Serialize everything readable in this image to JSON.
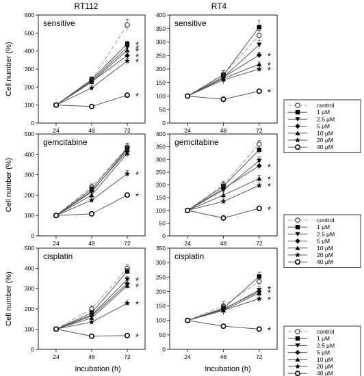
{
  "figure": {
    "column_titles": [
      "RT112",
      "RT4"
    ],
    "ylabel": "Cell number (%)",
    "xlabel": "Incubation (h)"
  },
  "legend_entries": [
    "control",
    "1 µM",
    "2.5 µM",
    "5 µM",
    "10 µM",
    "20 µM",
    "40 µM"
  ],
  "colors": {
    "control": "#9a9a9a",
    "series": "#555555",
    "marker": "#000000"
  },
  "chart_data": [
    {
      "id": "rt112-sensitive",
      "type": "line",
      "title": "sensitive",
      "x": [
        24,
        48,
        72
      ],
      "xticks": [
        24,
        48,
        72
      ],
      "ylim": [
        0,
        600
      ],
      "yticks": [
        0,
        100,
        200,
        300,
        400,
        500,
        600
      ],
      "series": [
        {
          "name": "control",
          "values": [
            100,
            240,
            545
          ],
          "errors": [
            0,
            15,
            30
          ]
        },
        {
          "name": "1 µM",
          "values": [
            100,
            242,
            440
          ],
          "errors": [
            0,
            15,
            15
          ]
        },
        {
          "name": "2.5 µM",
          "values": [
            100,
            235,
            420
          ],
          "errors": [
            0,
            15,
            15
          ]
        },
        {
          "name": "5 µM",
          "values": [
            100,
            230,
            375
          ],
          "errors": [
            0,
            15,
            15
          ]
        },
        {
          "name": "10 µM",
          "values": [
            100,
            228,
            405
          ],
          "errors": [
            0,
            15,
            15
          ]
        },
        {
          "name": "20 µM",
          "values": [
            100,
            195,
            345
          ],
          "errors": [
            0,
            15,
            15
          ]
        },
        {
          "name": "40 µM",
          "values": [
            100,
            92,
            155
          ],
          "errors": [
            0,
            10,
            10
          ]
        }
      ],
      "star_values": [
        155,
        345,
        375,
        405,
        420,
        440
      ]
    },
    {
      "id": "rt4-sensitive",
      "type": "line",
      "title": "sensitive",
      "x": [
        24,
        48,
        72
      ],
      "xticks": [
        24,
        48,
        72
      ],
      "ylim": [
        0,
        400
      ],
      "yticks": [
        0,
        50,
        100,
        150,
        200,
        250,
        300,
        350,
        400
      ],
      "series": [
        {
          "name": "control",
          "values": [
            100,
            180,
            325
          ],
          "errors": [
            0,
            15,
            18
          ]
        },
        {
          "name": "1 µM",
          "values": [
            100,
            178,
            355
          ],
          "errors": [
            0,
            15,
            25
          ]
        },
        {
          "name": "2.5 µM",
          "values": [
            100,
            170,
            290
          ],
          "errors": [
            0,
            15,
            15
          ]
        },
        {
          "name": "5 µM",
          "values": [
            100,
            170,
            252
          ],
          "errors": [
            0,
            15,
            10
          ]
        },
        {
          "name": "10 µM",
          "values": [
            100,
            165,
            218
          ],
          "errors": [
            0,
            15,
            10
          ]
        },
        {
          "name": "20 µM",
          "values": [
            100,
            160,
            200
          ],
          "errors": [
            0,
            15,
            10
          ]
        },
        {
          "name": "40 µM",
          "values": [
            100,
            88,
            118
          ],
          "errors": [
            0,
            8,
            8
          ]
        }
      ],
      "star_values": [
        118,
        200,
        218,
        252
      ]
    },
    {
      "id": "rt112-gemcitabine",
      "type": "line",
      "title": "gemcitabine",
      "x": [
        24,
        48,
        72
      ],
      "xticks": [
        24,
        48,
        72
      ],
      "ylim": [
        0,
        500
      ],
      "yticks": [
        0,
        100,
        200,
        300,
        400,
        500
      ],
      "series": [
        {
          "name": "control",
          "values": [
            100,
            240,
            435
          ],
          "errors": [
            0,
            15,
            20
          ]
        },
        {
          "name": "1 µM",
          "values": [
            100,
            230,
            430
          ],
          "errors": [
            0,
            15,
            20
          ]
        },
        {
          "name": "2.5 µM",
          "values": [
            100,
            215,
            425
          ],
          "errors": [
            0,
            15,
            20
          ]
        },
        {
          "name": "5 µM",
          "values": [
            100,
            220,
            415
          ],
          "errors": [
            0,
            15,
            20
          ]
        },
        {
          "name": "10 µM",
          "values": [
            100,
            200,
            405
          ],
          "errors": [
            0,
            15,
            20
          ]
        },
        {
          "name": "20 µM",
          "values": [
            100,
            175,
            305
          ],
          "errors": [
            0,
            12,
            15
          ]
        },
        {
          "name": "40 µM",
          "values": [
            100,
            108,
            200
          ],
          "errors": [
            0,
            8,
            10
          ]
        }
      ],
      "star_values": [
        200,
        305
      ]
    },
    {
      "id": "rt4-gemcitabine",
      "type": "line",
      "title": "gemcitabine",
      "x": [
        24,
        48,
        72
      ],
      "xticks": [
        24,
        48,
        72
      ],
      "ylim": [
        0,
        400
      ],
      "yticks": [
        0,
        50,
        100,
        150,
        200,
        250,
        300,
        350,
        400
      ],
      "series": [
        {
          "name": "control",
          "values": [
            100,
            200,
            360
          ],
          "errors": [
            0,
            15,
            15
          ]
        },
        {
          "name": "1 µM",
          "values": [
            100,
            195,
            338
          ],
          "errors": [
            0,
            15,
            15
          ]
        },
        {
          "name": "2.5 µM",
          "values": [
            100,
            180,
            295
          ],
          "errors": [
            0,
            15,
            15
          ]
        },
        {
          "name": "5 µM",
          "values": [
            100,
            185,
            275
          ],
          "errors": [
            0,
            15,
            15
          ]
        },
        {
          "name": "10 µM",
          "values": [
            100,
            160,
            225
          ],
          "errors": [
            0,
            12,
            12
          ]
        },
        {
          "name": "20 µM",
          "values": [
            100,
            135,
            198
          ],
          "errors": [
            0,
            10,
            10
          ]
        },
        {
          "name": "40 µM",
          "values": [
            100,
            70,
            108
          ],
          "errors": [
            0,
            8,
            8
          ]
        }
      ],
      "star_values": [
        108,
        198,
        225,
        275
      ]
    },
    {
      "id": "rt112-cisplatin",
      "type": "line",
      "title": "cisplatin",
      "x": [
        24,
        48,
        72
      ],
      "xticks": [
        24,
        48,
        72
      ],
      "ylim": [
        0,
        500
      ],
      "yticks": [
        0,
        100,
        200,
        300,
        400,
        500
      ],
      "series": [
        {
          "name": "control",
          "values": [
            100,
            200,
            400
          ],
          "errors": [
            0,
            15,
            18
          ]
        },
        {
          "name": "1 µM",
          "values": [
            100,
            180,
            385
          ],
          "errors": [
            0,
            15,
            15
          ]
        },
        {
          "name": "2.5 µM",
          "values": [
            100,
            170,
            345
          ],
          "errors": [
            0,
            15,
            15
          ]
        },
        {
          "name": "5 µM",
          "values": [
            100,
            165,
            325
          ],
          "errors": [
            0,
            15,
            15
          ]
        },
        {
          "name": "10 µM",
          "values": [
            100,
            155,
            315
          ],
          "errors": [
            0,
            15,
            15
          ]
        },
        {
          "name": "20 µM",
          "values": [
            100,
            135,
            228
          ],
          "errors": [
            0,
            12,
            12
          ]
        },
        {
          "name": "40 µM",
          "values": [
            100,
            65,
            68
          ],
          "errors": [
            0,
            5,
            5
          ]
        }
      ],
      "star_values": [
        68,
        228,
        315,
        345
      ]
    },
    {
      "id": "rt4-cisplatin",
      "type": "line",
      "title": "cisplatin",
      "x": [
        24,
        48,
        72
      ],
      "xticks": [
        24,
        48,
        72
      ],
      "ylim": [
        0,
        350
      ],
      "yticks": [
        0,
        50,
        100,
        150,
        200,
        250,
        300,
        350
      ],
      "series": [
        {
          "name": "control",
          "values": [
            100,
            150,
            235
          ],
          "errors": [
            0,
            15,
            15
          ]
        },
        {
          "name": "1 µM",
          "values": [
            100,
            142,
            252
          ],
          "errors": [
            0,
            15,
            15
          ]
        },
        {
          "name": "2.5 µM",
          "values": [
            100,
            138,
            205
          ],
          "errors": [
            0,
            15,
            12
          ]
        },
        {
          "name": "5 µM",
          "values": [
            100,
            140,
            200
          ],
          "errors": [
            0,
            15,
            12
          ]
        },
        {
          "name": "10 µM",
          "values": [
            100,
            135,
            195
          ],
          "errors": [
            0,
            15,
            12
          ]
        },
        {
          "name": "20 µM",
          "values": [
            100,
            135,
            175
          ],
          "errors": [
            0,
            15,
            12
          ]
        },
        {
          "name": "40 µM",
          "values": [
            100,
            80,
            70
          ],
          "errors": [
            0,
            6,
            6
          ]
        }
      ],
      "star_values": [
        70,
        175,
        200,
        212
      ]
    }
  ]
}
